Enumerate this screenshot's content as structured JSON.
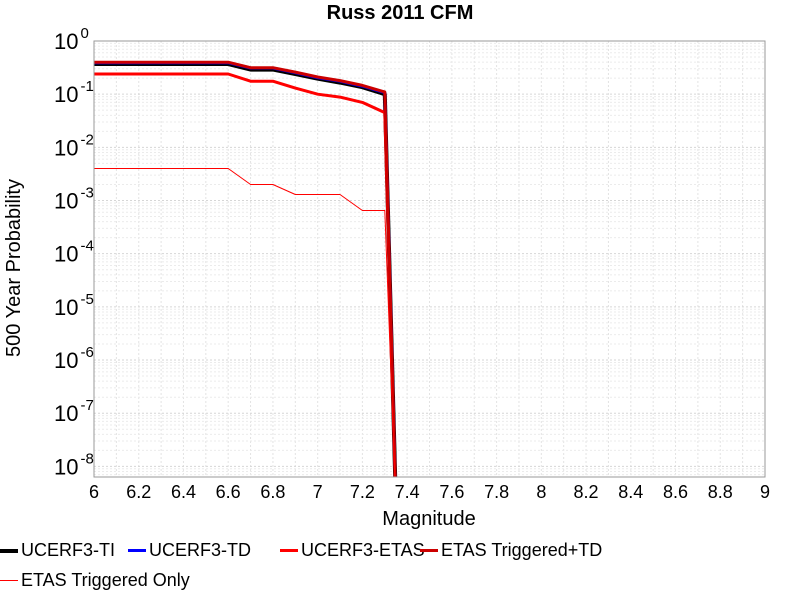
{
  "chart_data": {
    "type": "line",
    "title": "Russ 2011 CFM",
    "xlabel": "Magnitude",
    "ylabel": "500 Year Probability",
    "xlim": [
      6,
      9
    ],
    "ylim_log10": [
      -8.2,
      0
    ],
    "y_scale": "log",
    "grid": true,
    "legend_placement": "bottom",
    "x_ticks": [
      "6",
      "6.2",
      "6.4",
      "6.6",
      "6.8",
      "7",
      "7.2",
      "7.4",
      "7.6",
      "7.8",
      "8",
      "8.2",
      "8.4",
      "8.6",
      "8.8",
      "9"
    ],
    "y_ticks": [
      {
        "base": "10",
        "exp": "0"
      },
      {
        "base": "10",
        "exp": "-1"
      },
      {
        "base": "10",
        "exp": "-2"
      },
      {
        "base": "10",
        "exp": "-3"
      },
      {
        "base": "10",
        "exp": "-4"
      },
      {
        "base": "10",
        "exp": "-5"
      },
      {
        "base": "10",
        "exp": "-6"
      },
      {
        "base": "10",
        "exp": "-7"
      },
      {
        "base": "10",
        "exp": "-8"
      }
    ],
    "series": [
      {
        "name": "UCERF3-TI",
        "color": "#000000",
        "width": 4,
        "x": [
          6.0,
          6.6,
          6.7,
          6.8,
          6.9,
          7.0,
          7.1,
          7.2,
          7.3,
          7.35
        ],
        "y": [
          0.37,
          0.37,
          0.29,
          0.29,
          0.24,
          0.195,
          0.165,
          0.135,
          0.1,
          1e-09
        ]
      },
      {
        "name": "UCERF3-TD",
        "color": "#0000ff",
        "width": 3,
        "x": [
          6.0,
          6.6,
          6.7,
          6.8,
          6.9,
          7.0,
          7.1,
          7.2,
          7.3,
          7.35
        ],
        "y": [
          0.39,
          0.39,
          0.31,
          0.31,
          0.255,
          0.205,
          0.175,
          0.142,
          0.107,
          1e-09
        ]
      },
      {
        "name": "UCERF3-ETAS",
        "color": "#ff0000",
        "width": 3,
        "x": [
          6.0,
          6.6,
          6.7,
          6.8,
          6.9,
          7.0,
          7.1,
          7.2,
          7.3,
          7.35
        ],
        "y": [
          0.24,
          0.24,
          0.175,
          0.175,
          0.13,
          0.1,
          0.088,
          0.07,
          0.045,
          1e-09
        ]
      },
      {
        "name": "ETAS Triggered+TD",
        "color": "#cc0000",
        "width": 3,
        "x": [
          6.0,
          6.6,
          6.7,
          6.8,
          6.9,
          7.0,
          7.1,
          7.2,
          7.3,
          7.35
        ],
        "y": [
          0.4,
          0.4,
          0.315,
          0.315,
          0.26,
          0.21,
          0.18,
          0.146,
          0.11,
          1e-09
        ]
      },
      {
        "name": "ETAS Triggered Only",
        "color": "#ff0000",
        "width": 1,
        "x": [
          6.0,
          6.6,
          6.7,
          6.8,
          6.9,
          7.0,
          7.1,
          7.2,
          7.3,
          7.35
        ],
        "y": [
          0.004,
          0.004,
          0.002,
          0.002,
          0.0013,
          0.0013,
          0.0013,
          0.00065,
          0.00065,
          1e-09
        ]
      }
    ]
  },
  "legend": {
    "items": [
      {
        "label": "UCERF3-TI",
        "color": "#000000",
        "width": 4
      },
      {
        "label": "UCERF3-TD",
        "color": "#0000ff",
        "width": 3
      },
      {
        "label": "UCERF3-ETAS",
        "color": "#ff0000",
        "width": 3
      },
      {
        "label": "ETAS Triggered+TD",
        "color": "#cc0000",
        "width": 3
      },
      {
        "label": "ETAS Triggered Only",
        "color": "#ff0000",
        "width": 1
      }
    ]
  }
}
